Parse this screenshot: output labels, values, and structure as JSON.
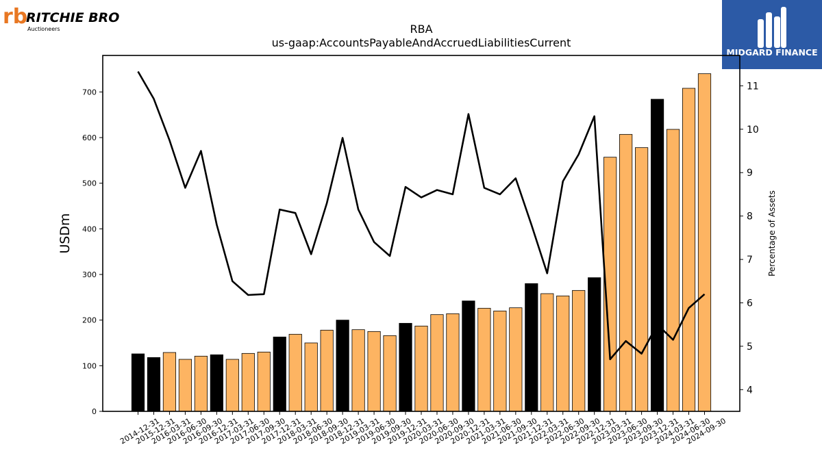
{
  "logos": {
    "left": {
      "brand": "RITCHIE BROS.",
      "sub": "Auctioneers",
      "mark": "rb",
      "color": "#e87722"
    },
    "right": {
      "brand": "MIDGARD FINANCE",
      "bg": "#2c5aa6"
    }
  },
  "chart_data": {
    "type": "bar",
    "title": "RBA",
    "subtitle": "us-gaap:AccountsPayableAndAccruedLiabilitiesCurrent",
    "ylabel": "USDm",
    "y2label": "Percentage of Assets",
    "ylim": [
      0,
      780
    ],
    "y2lim": [
      3.5,
      11.7
    ],
    "yticks": [
      0,
      100,
      200,
      300,
      400,
      500,
      600,
      700
    ],
    "y2ticks": [
      4,
      5,
      6,
      7,
      8,
      9,
      10,
      11
    ],
    "colors": {
      "annual": "#000000",
      "quarterly": "#fdb462",
      "line": "#000000"
    },
    "categories": [
      "2014-12-31",
      "2015-12-31",
      "2016-03-31",
      "2016-06-30",
      "2016-09-30",
      "2016-12-31",
      "2017-03-31",
      "2017-06-30",
      "2017-09-30",
      "2017-12-31",
      "2018-03-31",
      "2018-06-30",
      "2018-09-30",
      "2018-12-31",
      "2019-03-31",
      "2019-06-30",
      "2019-09-30",
      "2019-12-31",
      "2020-03-31",
      "2020-06-30",
      "2020-09-30",
      "2020-12-31",
      "2021-03-31",
      "2021-06-30",
      "2021-09-30",
      "2021-12-31",
      "2022-03-31",
      "2022-06-30",
      "2022-09-30",
      "2022-12-31",
      "2023-03-31",
      "2023-06-30",
      "2023-09-30",
      "2023-12-31",
      "2024-03-31",
      "2024-06-30",
      "2024-09-30"
    ],
    "series": [
      {
        "values": [
          126,
          118,
          129,
          114,
          121,
          124,
          114,
          127,
          130,
          163,
          169,
          150,
          178,
          200,
          179,
          175,
          166,
          193,
          187,
          212,
          214,
          242,
          226,
          220,
          227,
          280,
          258,
          253,
          265,
          293,
          557,
          607,
          578,
          684,
          618,
          708,
          740
        ],
        "period_type": [
          "annual",
          "annual",
          "quarterly",
          "quarterly",
          "quarterly",
          "annual",
          "quarterly",
          "quarterly",
          "quarterly",
          "annual",
          "quarterly",
          "quarterly",
          "quarterly",
          "annual",
          "quarterly",
          "quarterly",
          "quarterly",
          "annual",
          "quarterly",
          "quarterly",
          "quarterly",
          "annual",
          "quarterly",
          "quarterly",
          "quarterly",
          "annual",
          "quarterly",
          "quarterly",
          "quarterly",
          "annual",
          "quarterly",
          "quarterly",
          "quarterly",
          "annual",
          "quarterly",
          "quarterly",
          "quarterly"
        ]
      },
      {
        "axis": "right",
        "values": [
          11.33,
          10.7,
          9.75,
          8.65,
          9.5,
          7.8,
          6.5,
          6.18,
          6.2,
          8.15,
          8.07,
          7.12,
          8.3,
          9.8,
          8.15,
          7.4,
          7.08,
          8.67,
          8.43,
          8.6,
          8.5,
          10.35,
          8.65,
          8.5,
          8.87,
          7.8,
          6.68,
          8.8,
          9.42,
          10.3,
          4.7,
          5.12,
          4.83,
          5.5,
          5.15,
          5.88,
          6.2
        ]
      }
    ]
  }
}
